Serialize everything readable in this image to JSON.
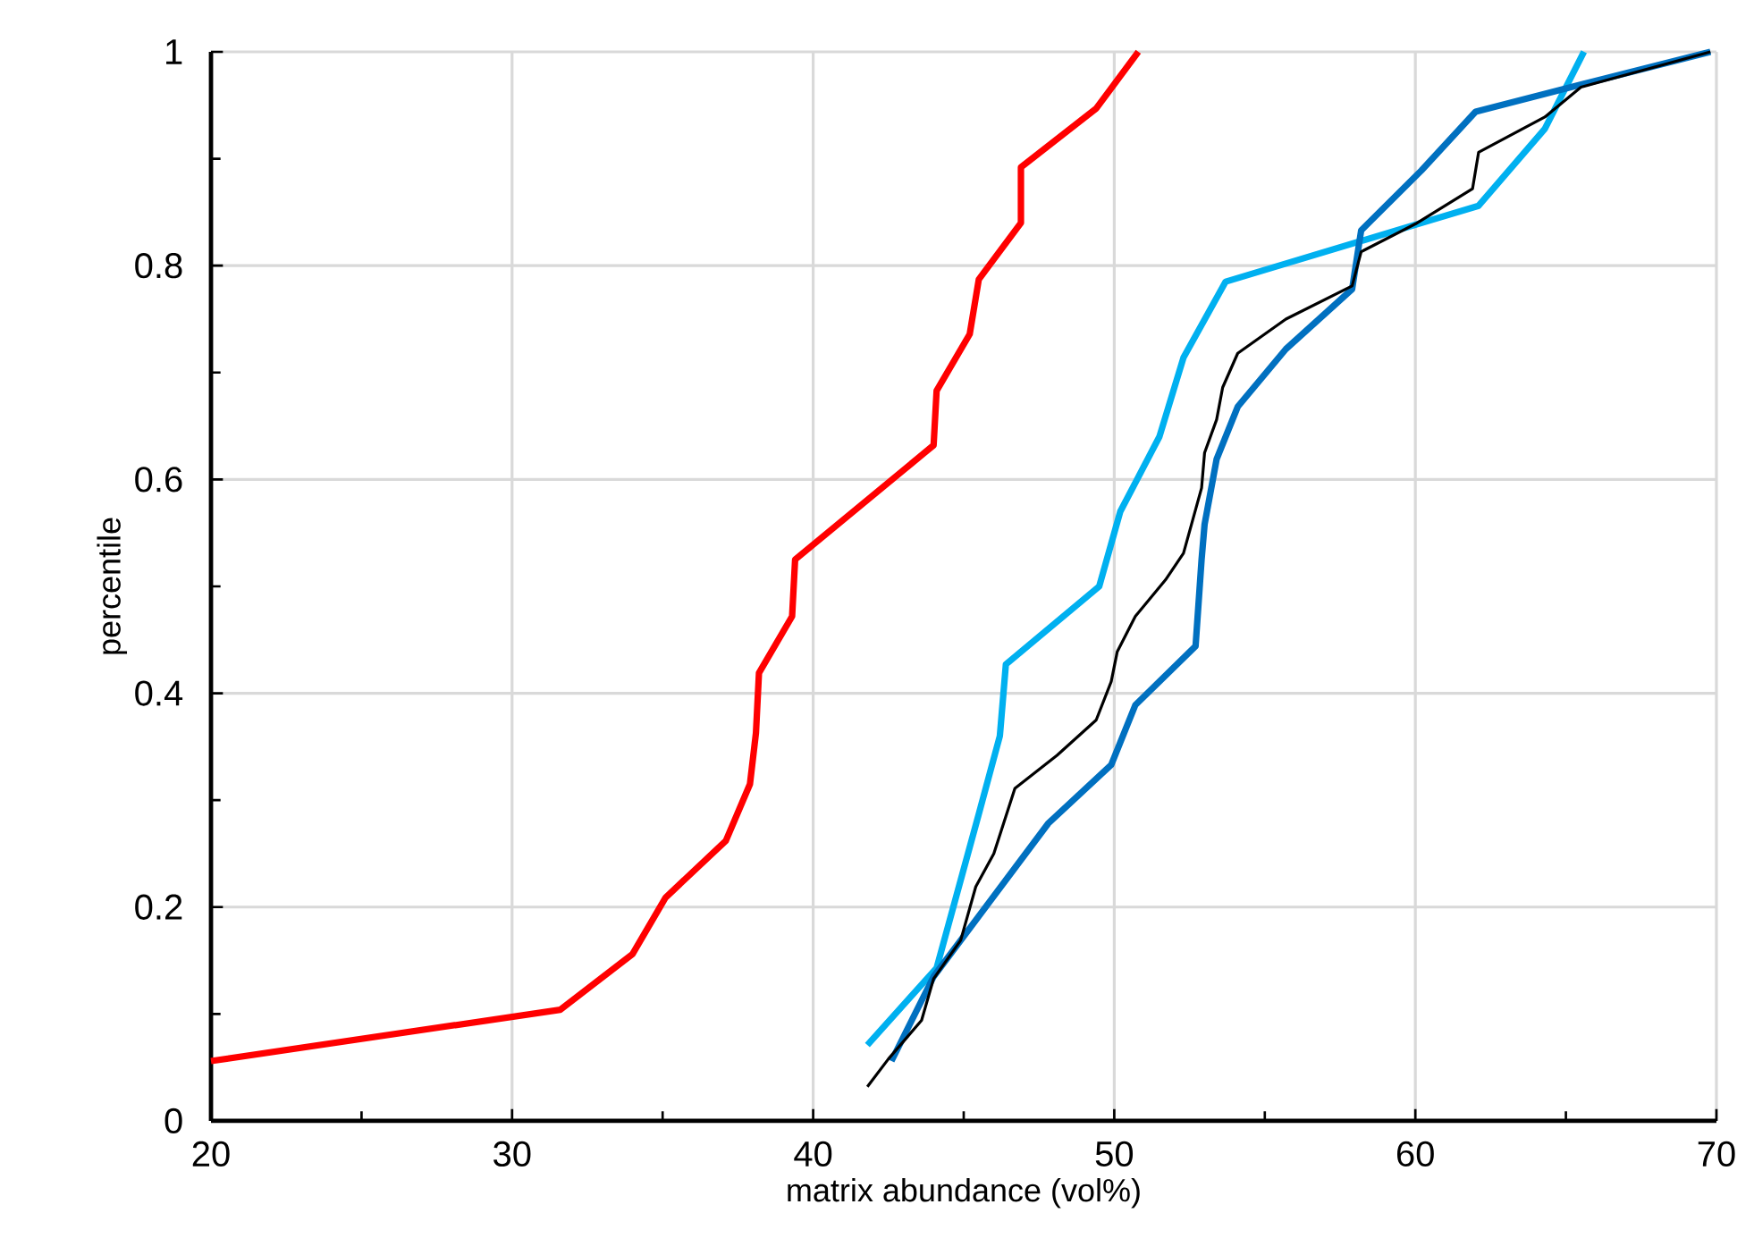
{
  "chart_data": {
    "type": "line",
    "xlabel": "matrix abundance (vol%)",
    "ylabel": "percentile",
    "xlim": [
      20,
      70
    ],
    "ylim": [
      0,
      1
    ],
    "xticks": [
      20,
      {
        "value": 25,
        "label": null
      },
      30,
      {
        "value": 35,
        "label": null
      },
      40,
      {
        "value": 45,
        "label": null
      },
      50,
      {
        "value": 55,
        "label": null
      },
      60,
      {
        "value": 65,
        "label": null
      },
      70
    ],
    "yticks": [
      0,
      {
        "value": 0.1,
        "label": null
      },
      0.2,
      {
        "value": 0.3,
        "label": null
      },
      0.4,
      {
        "value": 0.5,
        "label": null
      },
      0.6,
      {
        "value": 0.7,
        "label": null
      },
      0.8,
      {
        "value": 0.9,
        "label": null
      },
      1
    ],
    "grid": true,
    "marker": "none",
    "line_style": "solid",
    "series": [
      {
        "color": "#ff0000",
        "x": [
          20,
          31.6,
          34.0,
          35.1,
          37.1,
          37.9,
          38.1,
          38.2,
          39.3,
          39.4,
          44.0,
          44.1,
          45.2,
          45.5,
          46.9,
          46.9,
          49.4,
          50.8
        ],
        "values": [
          0.056,
          0.104,
          0.156,
          0.209,
          0.262,
          0.315,
          0.363,
          0.419,
          0.472,
          0.525,
          0.632,
          0.683,
          0.736,
          0.787,
          0.84,
          0.892,
          0.947,
          1.0
        ]
      },
      {
        "color": "#00b0f0",
        "x": [
          41.8,
          44.1,
          45.5,
          46.2,
          46.4,
          49.5,
          50.2,
          51.5,
          52.3,
          53.7,
          62.1,
          64.3,
          65.6
        ],
        "values": [
          0.071,
          0.143,
          0.287,
          0.36,
          0.427,
          0.5,
          0.57,
          0.64,
          0.714,
          0.785,
          0.856,
          0.928,
          1.0
        ]
      },
      {
        "color": "#0070c0",
        "x": [
          42.6,
          44.0,
          47.8,
          49.9,
          50.7,
          52.7,
          52.9,
          53.0,
          53.4,
          54.1,
          55.7,
          57.9,
          58.2,
          60.2,
          62.0,
          65.6,
          69.8
        ],
        "values": [
          0.056,
          0.135,
          0.278,
          0.333,
          0.389,
          0.444,
          0.525,
          0.558,
          0.619,
          0.668,
          0.722,
          0.778,
          0.833,
          0.889,
          0.944,
          0.97,
          1.0
        ]
      },
      {
        "color": "#000000",
        "x": [
          41.8,
          42.5,
          43.6,
          44.0,
          44.9,
          45.4,
          46.0,
          46.7,
          48.1,
          49.4,
          49.9,
          50.1,
          50.7,
          51.7,
          52.3,
          52.9,
          53.0,
          53.4,
          53.6,
          54.1,
          55.7,
          57.9,
          58.2,
          60.0,
          61.9,
          62.1,
          64.3,
          65.5,
          69.8
        ],
        "values": [
          0.032,
          0.058,
          0.094,
          0.133,
          0.169,
          0.219,
          0.25,
          0.311,
          0.342,
          0.375,
          0.411,
          0.439,
          0.472,
          0.506,
          0.531,
          0.592,
          0.625,
          0.656,
          0.686,
          0.718,
          0.75,
          0.781,
          0.813,
          0.839,
          0.872,
          0.906,
          0.939,
          0.967,
          1.0
        ]
      }
    ]
  }
}
